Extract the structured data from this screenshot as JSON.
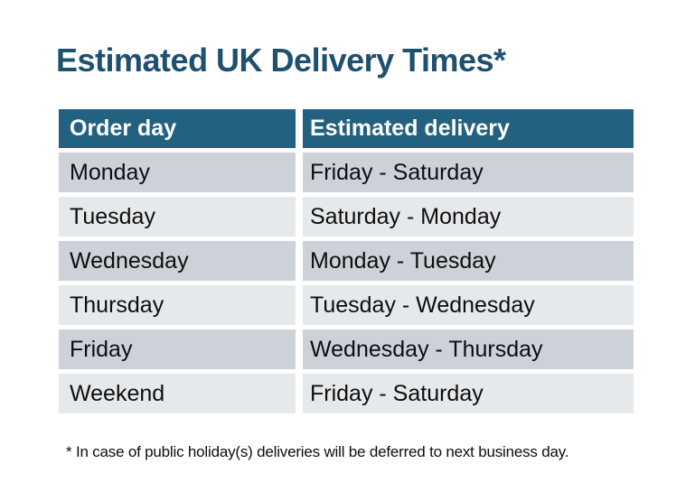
{
  "title": "Estimated UK Delivery Times*",
  "table": {
    "headers": [
      "Order day",
      "Estimated delivery"
    ],
    "rows": [
      {
        "order_day": "Monday",
        "estimated_delivery": "Friday - Saturday"
      },
      {
        "order_day": "Tuesday",
        "estimated_delivery": "Saturday - Monday"
      },
      {
        "order_day": "Wednesday",
        "estimated_delivery": "Monday - Tuesday"
      },
      {
        "order_day": "Thursday",
        "estimated_delivery": "Tuesday - Wednesday"
      },
      {
        "order_day": "Friday",
        "estimated_delivery": "Wednesday - Thursday"
      },
      {
        "order_day": "Weekend",
        "estimated_delivery": "Friday - Saturday"
      }
    ]
  },
  "footnote": "* In case of public holiday(s) deliveries will be deferred to next business day.",
  "colors": {
    "title_text": "#1F506E",
    "accent_header": "#226180",
    "header_text": "#FFFFFF",
    "row_dark": "#CDD1D8",
    "row_light": "#E6E9EB",
    "body_text": "#0E0E0E"
  }
}
